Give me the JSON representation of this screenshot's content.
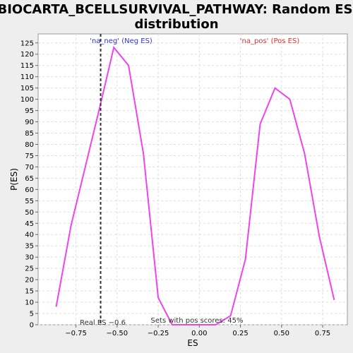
{
  "chart_data": {
    "type": "line",
    "title_lines": [
      "BIOCARTA_BCELLSURVIVAL_PATHWAY: Random ES",
      "distribution"
    ],
    "xlabel": "ES",
    "ylabel": "P(ES)",
    "xlim": [
      -0.98,
      0.9
    ],
    "ylim": [
      0,
      129
    ],
    "x_ticks": [
      -0.75,
      -0.5,
      -0.25,
      0.0,
      0.25,
      0.5,
      0.75
    ],
    "x_tick_labels": [
      "−0.75",
      "−0.50",
      "−0.25",
      "0.00",
      "0.25",
      "0.50",
      "0.75"
    ],
    "y_ticks": [
      0,
      5,
      10,
      15,
      20,
      25,
      30,
      35,
      40,
      45,
      50,
      55,
      60,
      65,
      70,
      75,
      80,
      85,
      90,
      95,
      100,
      105,
      110,
      115,
      120,
      125
    ],
    "grid": true,
    "series": [
      {
        "color": "#ee44ee",
        "x": [
          -0.87,
          -0.78,
          -0.69,
          -0.6,
          -0.52,
          -0.43,
          -0.34,
          -0.25,
          -0.165,
          -0.08,
          0.01,
          0.1,
          0.19,
          0.28,
          0.37,
          0.46,
          0.55,
          0.64,
          0.73,
          0.82
        ],
        "y": [
          8,
          44,
          71,
          98,
          123,
          115,
          76,
          12,
          0,
          0,
          0,
          0,
          4,
          29,
          89,
          105,
          100,
          76,
          39,
          11
        ]
      }
    ],
    "real_es": {
      "value": -0.6,
      "label": "Real ES −0.6"
    },
    "annotations": {
      "neg": {
        "text": "'na_neg' (Neg ES)",
        "color": "#3333cc"
      },
      "pos": {
        "text": "'na_pos' (Pos ES)",
        "color": "#dd3333"
      },
      "pos_scores": {
        "text": "Sets with pos scores: 45%",
        "color": "#333333"
      }
    }
  }
}
